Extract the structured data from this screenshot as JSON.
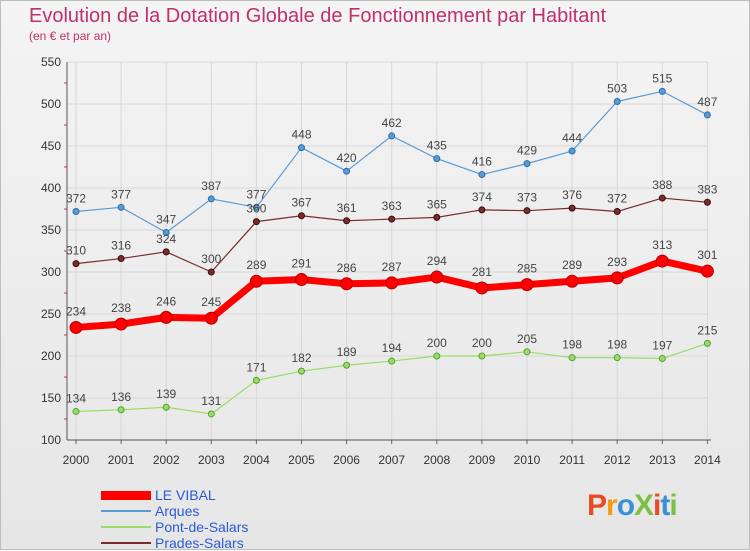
{
  "title": "Evolution de la Dotation Globale de Fonctionnement par Habitant",
  "subtitle": "(en € et par an)",
  "logo_text": "ProXiti",
  "chart_data": {
    "type": "line",
    "title": "Evolution de la Dotation Globale de Fonctionnement par Habitant",
    "subtitle": "(en € et par an)",
    "x": [
      "2000",
      "2001",
      "2002",
      "2003",
      "2004",
      "2005",
      "2006",
      "2007",
      "2008",
      "2009",
      "2010",
      "2011",
      "2012",
      "2013",
      "2014"
    ],
    "ylim": [
      100,
      550
    ],
    "yticks": [
      100,
      150,
      200,
      250,
      300,
      350,
      400,
      450,
      500,
      550
    ],
    "grid": true,
    "legend_position": "bottom-left",
    "series": [
      {
        "name": "LE VIBAL",
        "color": "#ff0000",
        "values": [
          234,
          238,
          246,
          245,
          289,
          291,
          286,
          287,
          294,
          281,
          285,
          289,
          293,
          313,
          301
        ]
      },
      {
        "name": "Arques",
        "color": "#5b9bd5",
        "values": [
          372,
          377,
          347,
          387,
          377,
          448,
          420,
          462,
          435,
          416,
          429,
          444,
          503,
          515,
          487
        ]
      },
      {
        "name": "Pont-de-Salars",
        "color": "#99dd66",
        "values": [
          134,
          136,
          139,
          131,
          171,
          182,
          189,
          194,
          200,
          200,
          205,
          198,
          198,
          197,
          215
        ]
      },
      {
        "name": "Prades-Salars",
        "color": "#7b2b2b",
        "values": [
          310,
          316,
          324,
          300,
          360,
          367,
          361,
          363,
          365,
          374,
          373,
          376,
          372,
          388,
          383
        ]
      }
    ]
  }
}
